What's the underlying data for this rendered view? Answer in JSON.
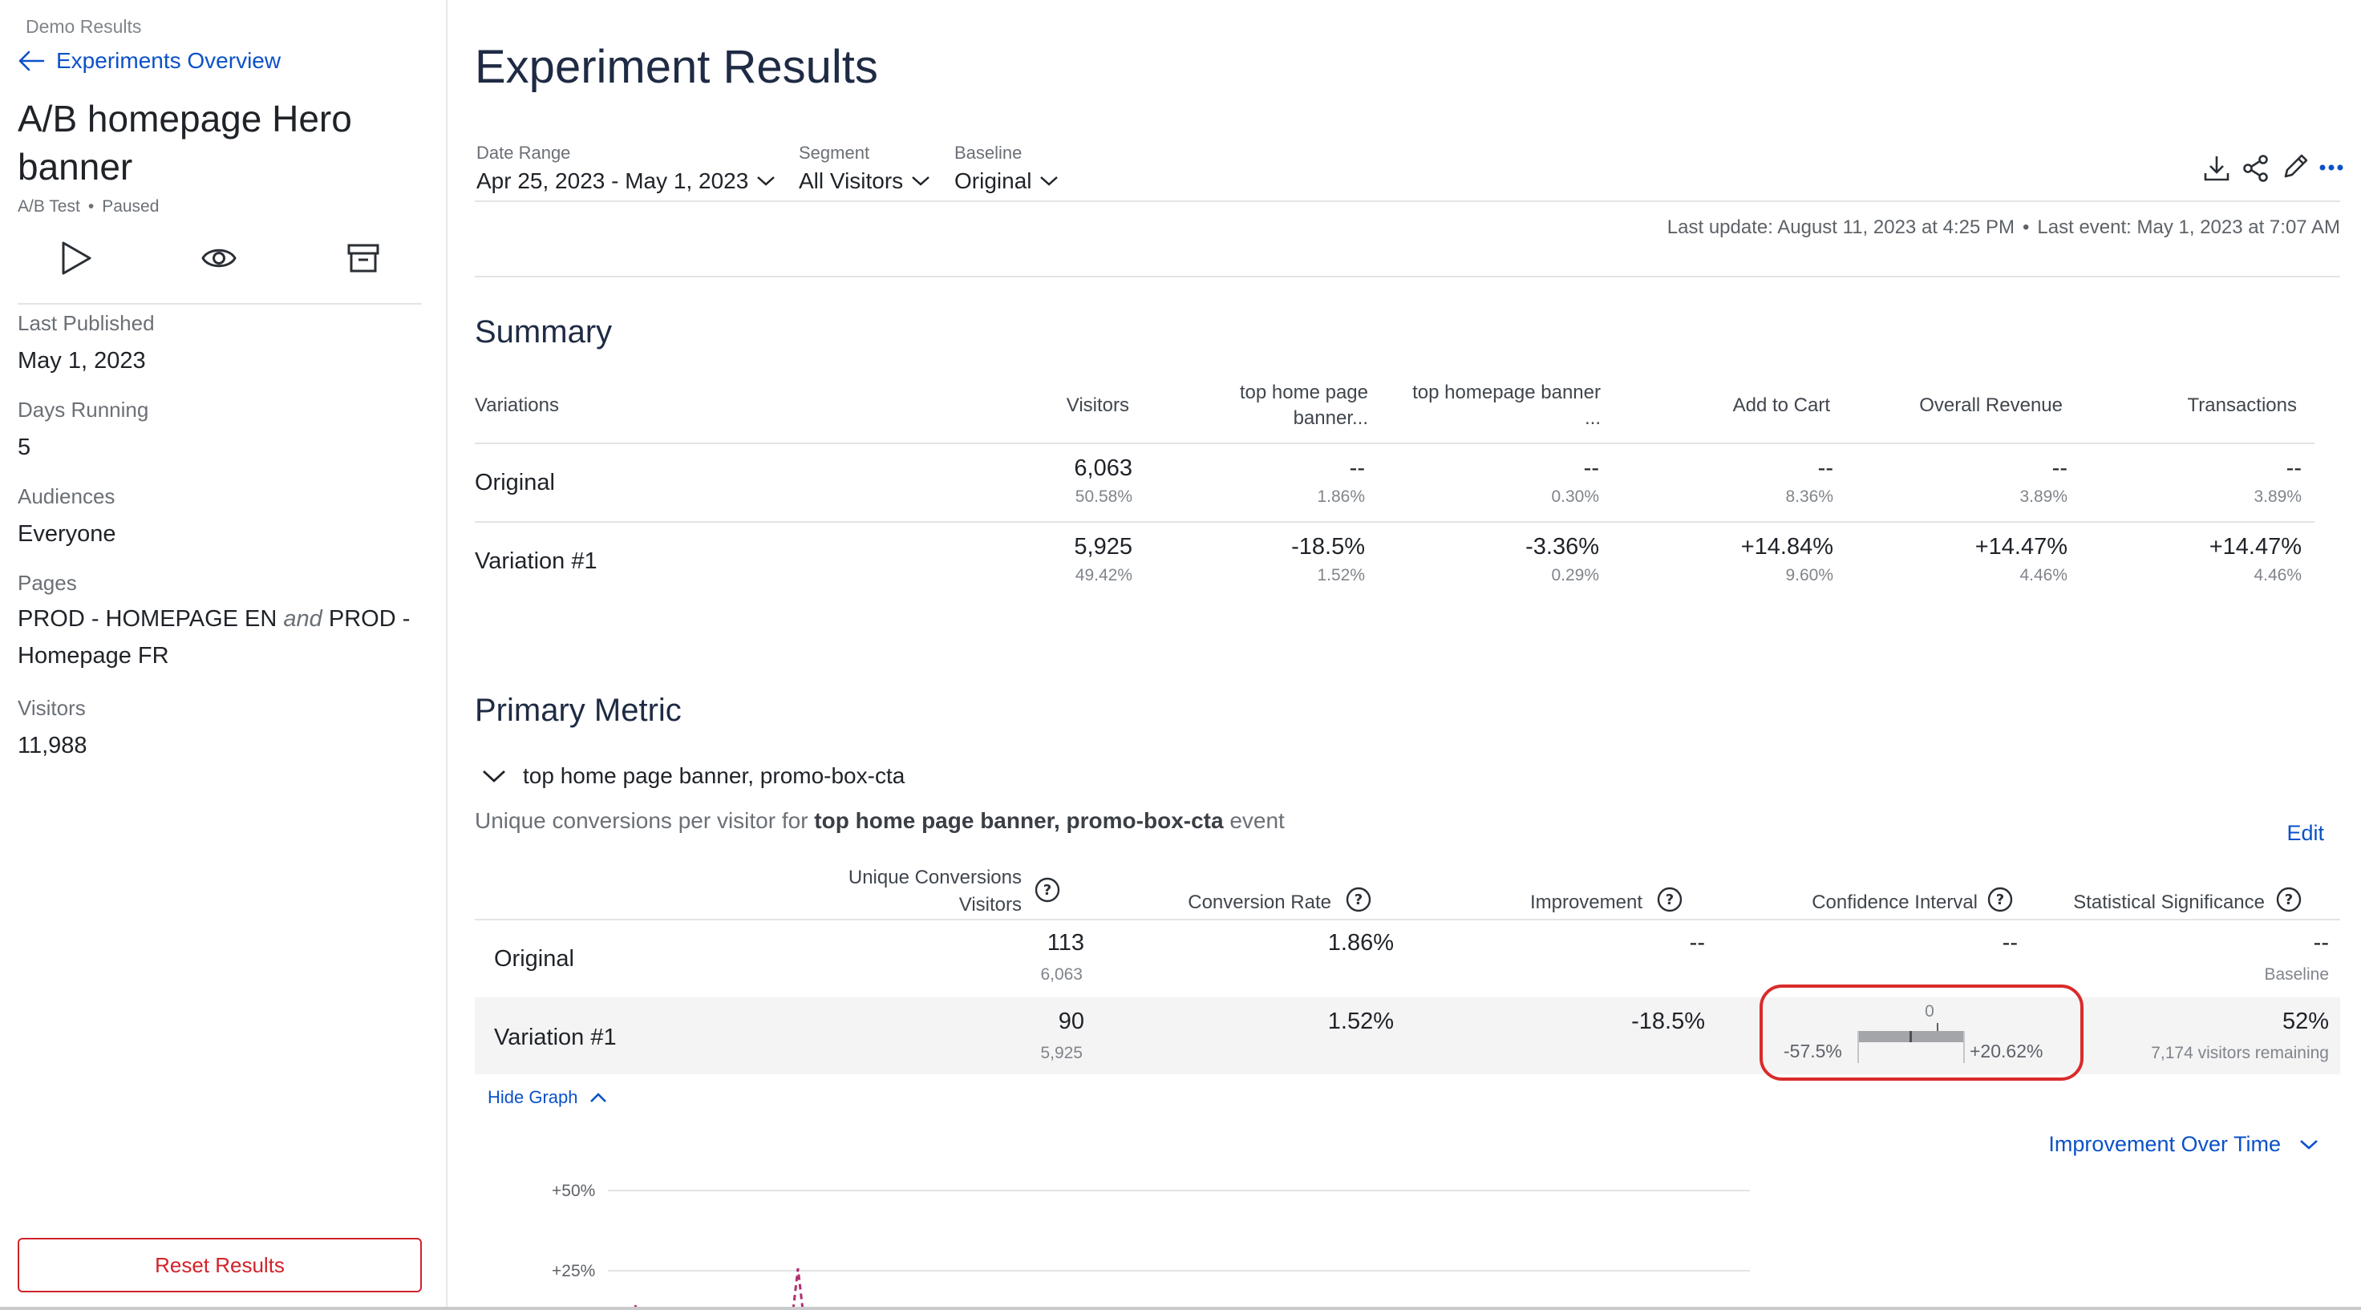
{
  "sidebar": {
    "context": "Demo Results",
    "back_link": "Experiments Overview",
    "experiment_title_line1": "A/B homepage Hero",
    "experiment_title_line2": "banner",
    "type": "A/B Test",
    "status": "Paused",
    "last_published_label": "Last Published",
    "last_published_value": "May 1, 2023",
    "days_running_label": "Days Running",
    "days_running_value": "5",
    "audiences_label": "Audiences",
    "audiences_value": "Everyone",
    "pages_label": "Pages",
    "pages_part1": "PROD - HOMEPAGE EN",
    "pages_and": "and",
    "pages_part2": "PROD -",
    "pages_part3": "Homepage FR",
    "visitors_label": "Visitors",
    "visitors_value": "11,988",
    "reset_button": "Reset Results"
  },
  "header": {
    "title": "Experiment Results",
    "filters": [
      {
        "label": "Date Range",
        "value": "Apr 25, 2023 - May 1, 2023"
      },
      {
        "label": "Segment",
        "value": "All Visitors"
      },
      {
        "label": "Baseline",
        "value": "Original"
      }
    ],
    "last_update": "Last update: August 11, 2023 at 4:25 PM",
    "last_event": "Last event: May 1, 2023 at 7:07 AM"
  },
  "summary": {
    "title": "Summary",
    "columns": {
      "variations": "Variations",
      "visitors": "Visitors",
      "col3_line1": "top home page",
      "col3_line2": "banner...",
      "col4_line1": "top homepage banner",
      "col4_line2": "...",
      "add_to_cart": "Add to Cart",
      "overall_revenue": "Overall Revenue",
      "transactions": "Transactions"
    },
    "rows": [
      {
        "name": "Original",
        "visitors": "6,063",
        "visitors_pct": "50.58%",
        "c3": "--",
        "c3_sub": "1.86%",
        "c4": "--",
        "c4_sub": "0.30%",
        "c5": "--",
        "c5_sub": "8.36%",
        "c6": "--",
        "c6_sub": "3.89%",
        "c7": "--",
        "c7_sub": "3.89%"
      },
      {
        "name": "Variation #1",
        "visitors": "5,925",
        "visitors_pct": "49.42%",
        "c3": "-18.5%",
        "c3_sub": "1.52%",
        "c4": "-3.36%",
        "c4_sub": "0.29%",
        "c5": "+14.84%",
        "c5_sub": "9.60%",
        "c6": "+14.47%",
        "c6_sub": "4.46%",
        "c7": "+14.47%",
        "c7_sub": "4.46%"
      }
    ]
  },
  "primary_metric": {
    "title": "Primary Metric",
    "metric_name": "top home page banner, promo-box-cta",
    "desc_prefix": "Unique conversions per visitor for",
    "desc_bold": "top home page banner, promo-box-cta",
    "desc_suffix": "event",
    "edit": "Edit",
    "columns": {
      "uc_line1": "Unique Conversions",
      "uc_line2": "Visitors",
      "conversion_rate": "Conversion Rate",
      "improvement": "Improvement",
      "confidence_interval": "Confidence Interval",
      "statistical_significance": "Statistical Significance"
    },
    "rows": [
      {
        "name": "Original",
        "conversions": "113",
        "visitors": "6,063",
        "rate": "1.86%",
        "improvement": "--",
        "ci": "--",
        "significance": "--",
        "significance_sub": "Baseline"
      },
      {
        "name": "Variation #1",
        "conversions": "90",
        "visitors": "5,925",
        "rate": "1.52%",
        "improvement": "-18.5%",
        "ci_low": "-57.5%",
        "ci_zero": "0",
        "ci_high": "+20.62%",
        "significance": "52%",
        "significance_sub": "7,174 visitors remaining"
      }
    ],
    "hide_graph": "Hide Graph",
    "graph_selector": "Improvement Over Time"
  },
  "chart_data": {
    "type": "line",
    "y_ticks": [
      "+50%",
      "+25%"
    ],
    "series": []
  },
  "colors": {
    "accent": "#0b51c8",
    "danger": "#d1232a",
    "highlight_ring": "#d92b2b",
    "series": "#b0306f"
  }
}
